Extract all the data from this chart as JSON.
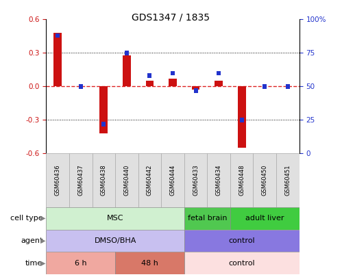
{
  "title": "GDS1347 / 1835",
  "samples": [
    "GSM60436",
    "GSM60437",
    "GSM60438",
    "GSM60440",
    "GSM60442",
    "GSM60444",
    "GSM60433",
    "GSM60434",
    "GSM60448",
    "GSM60450",
    "GSM60451"
  ],
  "log2_ratio": [
    0.48,
    0.0,
    -0.42,
    0.28,
    0.05,
    0.07,
    -0.03,
    0.05,
    -0.55,
    0.0,
    0.0
  ],
  "percentile_rank": [
    88,
    50,
    22,
    75,
    58,
    60,
    47,
    60,
    25,
    50,
    50
  ],
  "cell_type_groups": [
    {
      "label": "MSC",
      "start": 0,
      "end": 6,
      "color": "#d0f0d0"
    },
    {
      "label": "fetal brain",
      "start": 6,
      "end": 8,
      "color": "#50c850"
    },
    {
      "label": "adult liver",
      "start": 8,
      "end": 11,
      "color": "#40cc40"
    }
  ],
  "agent_groups": [
    {
      "label": "DMSO/BHA",
      "start": 0,
      "end": 6,
      "color": "#c8c0f0"
    },
    {
      "label": "control",
      "start": 6,
      "end": 11,
      "color": "#8878e0"
    }
  ],
  "time_groups": [
    {
      "label": "6 h",
      "start": 0,
      "end": 3,
      "color": "#f0a8a0"
    },
    {
      "label": "48 h",
      "start": 3,
      "end": 6,
      "color": "#d87868"
    },
    {
      "label": "control",
      "start": 6,
      "end": 11,
      "color": "#fce0e0"
    }
  ],
  "ylim": [
    -0.6,
    0.6
  ],
  "y2lim": [
    0,
    100
  ],
  "yticks": [
    -0.6,
    -0.3,
    0.0,
    0.3,
    0.6
  ],
  "y2ticks": [
    0,
    25,
    50,
    75,
    100
  ],
  "y2ticklabels": [
    "0",
    "25",
    "50",
    "75",
    "100%"
  ],
  "bar_color_red": "#cc1111",
  "bar_color_blue": "#2233cc",
  "zero_line_color": "#dd2222",
  "bg_color": "#ffffff"
}
